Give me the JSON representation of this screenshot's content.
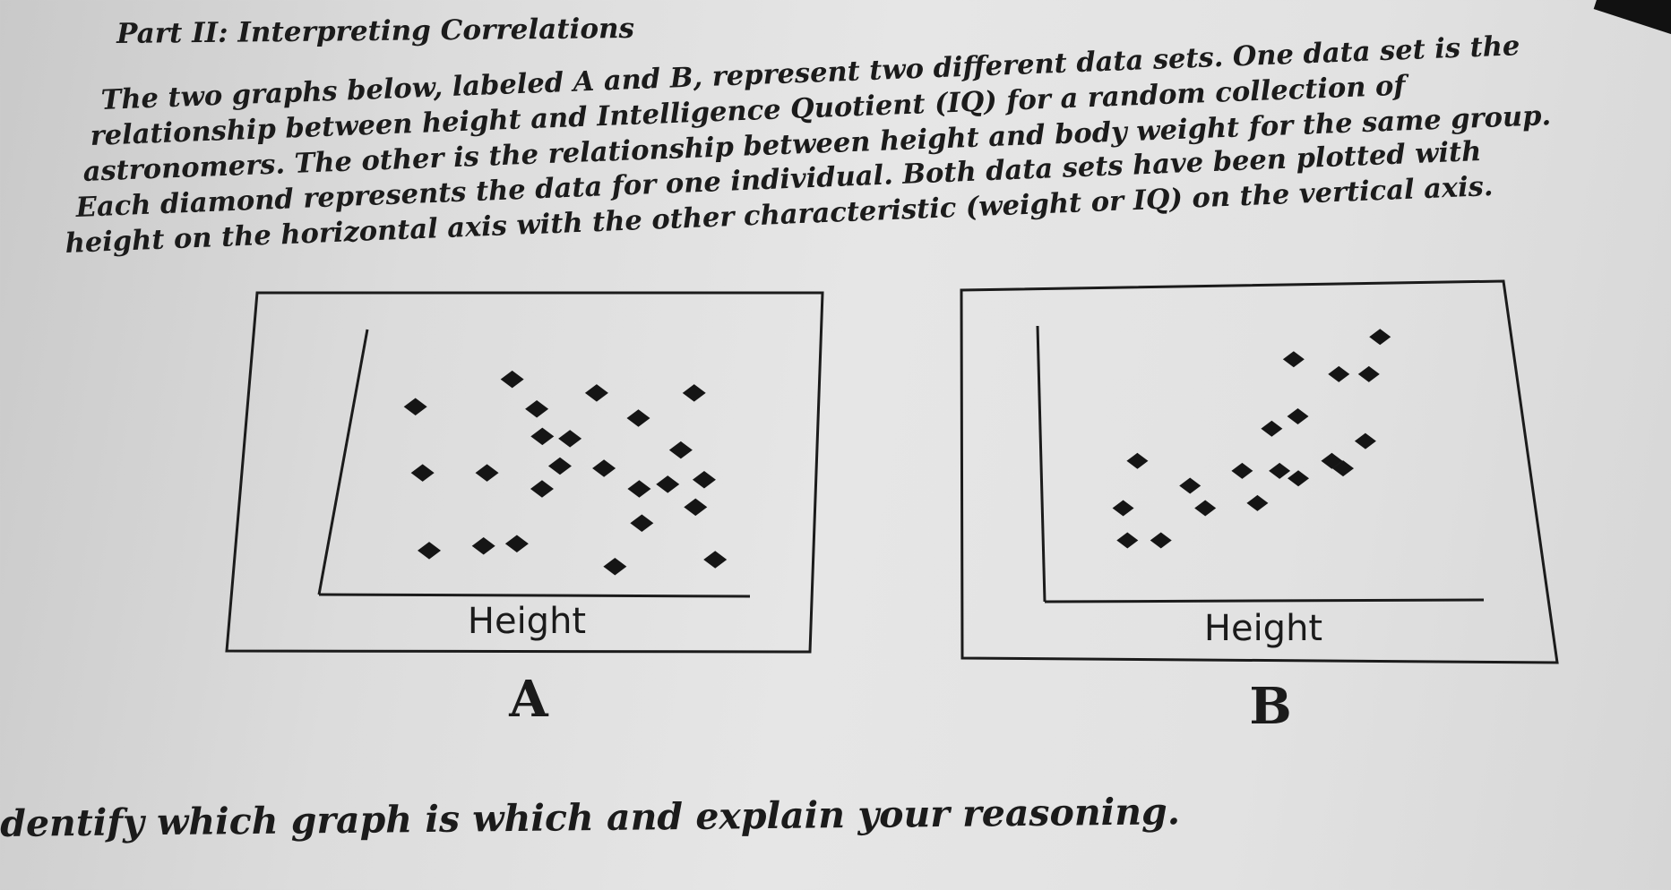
{
  "header": {
    "title": "Part II: Interpreting Correlations"
  },
  "paragraph": {
    "lines": [
      "The two graphs below, labeled A and B, represent two different data sets.  One data set is the",
      "relationship between height and Intelligence Quotient (IQ) for a random collection of",
      "astronomers.  The other is the relationship between height and body weight for the same group.",
      "Each diamond represents the data for one individual.  Both data sets have been plotted with",
      "height on the horizontal axis with the other characteristic (weight or IQ) on the vertical axis."
    ]
  },
  "question": "dentify which graph is which and explain your reasoning.",
  "chart_data": [
    {
      "type": "scatter",
      "panel_label": "A",
      "xlabel": "Height",
      "ylabel": "",
      "xlim": [
        0,
        100
      ],
      "ylim": [
        0,
        100
      ],
      "marker": "diamond",
      "points": [
        {
          "x": 14,
          "y": 76
        },
        {
          "x": 38,
          "y": 88
        },
        {
          "x": 45,
          "y": 75
        },
        {
          "x": 60,
          "y": 82
        },
        {
          "x": 85,
          "y": 82
        },
        {
          "x": 71,
          "y": 71
        },
        {
          "x": 47,
          "y": 63
        },
        {
          "x": 54,
          "y": 62
        },
        {
          "x": 82,
          "y": 57
        },
        {
          "x": 52,
          "y": 50
        },
        {
          "x": 63,
          "y": 49
        },
        {
          "x": 18,
          "y": 47
        },
        {
          "x": 34,
          "y": 47
        },
        {
          "x": 48,
          "y": 40
        },
        {
          "x": 72,
          "y": 40
        },
        {
          "x": 79,
          "y": 42
        },
        {
          "x": 88,
          "y": 44
        },
        {
          "x": 86,
          "y": 32
        },
        {
          "x": 73,
          "y": 25
        },
        {
          "x": 22,
          "y": 13
        },
        {
          "x": 35,
          "y": 15
        },
        {
          "x": 43,
          "y": 16
        },
        {
          "x": 67,
          "y": 6
        },
        {
          "x": 91,
          "y": 9
        }
      ]
    },
    {
      "type": "scatter",
      "panel_label": "B",
      "xlabel": "Height",
      "ylabel": "",
      "xlim": [
        0,
        100
      ],
      "ylim": [
        0,
        100
      ],
      "marker": "diamond",
      "points": [
        {
          "x": 81,
          "y": 97
        },
        {
          "x": 58,
          "y": 88
        },
        {
          "x": 70,
          "y": 82
        },
        {
          "x": 78,
          "y": 82
        },
        {
          "x": 59,
          "y": 65
        },
        {
          "x": 52,
          "y": 60
        },
        {
          "x": 77,
          "y": 55
        },
        {
          "x": 16,
          "y": 47
        },
        {
          "x": 68,
          "y": 47
        },
        {
          "x": 71,
          "y": 44
        },
        {
          "x": 44,
          "y": 43
        },
        {
          "x": 54,
          "y": 43
        },
        {
          "x": 59,
          "y": 40
        },
        {
          "x": 30,
          "y": 37
        },
        {
          "x": 34,
          "y": 28
        },
        {
          "x": 48,
          "y": 30
        },
        {
          "x": 12,
          "y": 28
        },
        {
          "x": 13,
          "y": 15
        },
        {
          "x": 22,
          "y": 15
        }
      ]
    }
  ]
}
